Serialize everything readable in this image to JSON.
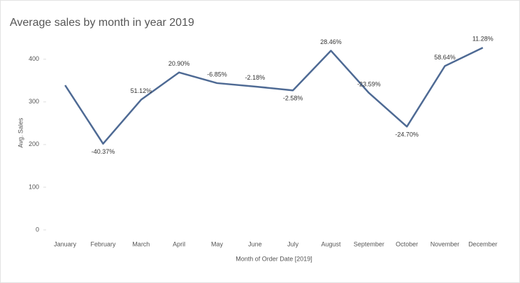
{
  "chart_data": {
    "type": "line",
    "title": "Average sales by month in year 2019",
    "categories": [
      "January",
      "February",
      "March",
      "April",
      "May",
      "June",
      "July",
      "August",
      "September",
      "October",
      "November",
      "December"
    ],
    "values": [
      339,
      202,
      305,
      369,
      344,
      336,
      327,
      420,
      321,
      242,
      384,
      427
    ],
    "value_labels": [
      null,
      "-40.37%",
      "51.12%",
      "20.90%",
      "-6.85%",
      "-2.18%",
      "-2.58%",
      "28.46%",
      "-23.59%",
      "-24.70%",
      "58.64%",
      "11.28%"
    ],
    "color": "#4e6a94",
    "x_label": "Month of Order Date [2019]",
    "y_label": "Avg. Sales",
    "ylim": [
      0,
      470
    ],
    "yticks": [
      0,
      100,
      200,
      300,
      400
    ],
    "grid": false
  }
}
